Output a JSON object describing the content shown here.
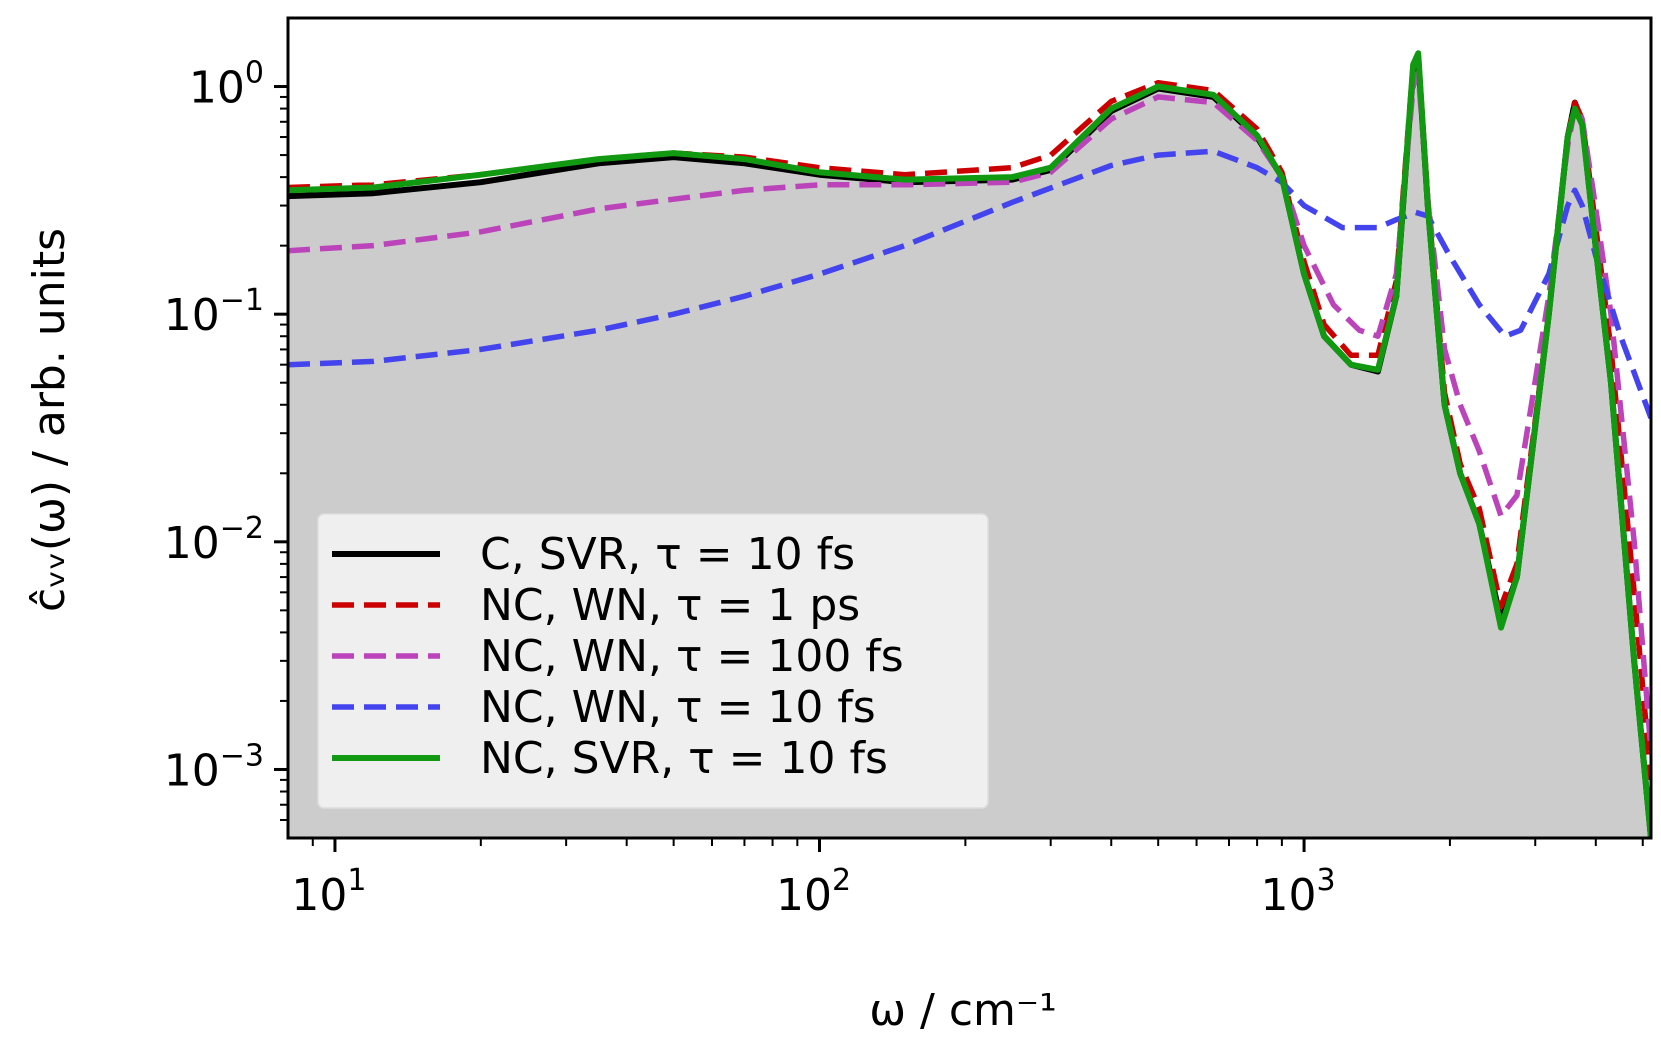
{
  "chart_data": {
    "type": "line",
    "xscale": "log",
    "yscale": "log",
    "xlim": [
      8,
      5200
    ],
    "ylim": [
      0.0005,
      2.0
    ],
    "xlabel": "ω / cm⁻¹",
    "ylabel": "ĉᵥᵥ(ω) / arb. units",
    "x_ticks": [
      {
        "value": 10,
        "base": "10",
        "exp": "1"
      },
      {
        "value": 100,
        "base": "10",
        "exp": "2"
      },
      {
        "value": 1000,
        "base": "10",
        "exp": "3"
      }
    ],
    "y_ticks": [
      {
        "value": 1,
        "base": "10",
        "exp": "0"
      },
      {
        "value": 0.1,
        "base": "10",
        "exp": "−1"
      },
      {
        "value": 0.01,
        "base": "10",
        "exp": "−2"
      },
      {
        "value": 0.001,
        "base": "10",
        "exp": "−3"
      }
    ],
    "legend_position": "lower-left",
    "filled_reference": {
      "name": "C, SVR, τ = 10 fs",
      "color": "#cccccc"
    },
    "series": [
      {
        "name": "C, SVR, τ = 10 fs",
        "color": "#000000",
        "dash": "solid",
        "points": [
          [
            8,
            0.33
          ],
          [
            12,
            0.34
          ],
          [
            20,
            0.38
          ],
          [
            35,
            0.46
          ],
          [
            50,
            0.49
          ],
          [
            70,
            0.46
          ],
          [
            100,
            0.41
          ],
          [
            150,
            0.38
          ],
          [
            250,
            0.39
          ],
          [
            300,
            0.43
          ],
          [
            400,
            0.78
          ],
          [
            500,
            0.98
          ],
          [
            650,
            0.9
          ],
          [
            800,
            0.6
          ],
          [
            900,
            0.4
          ],
          [
            1000,
            0.15
          ],
          [
            1100,
            0.08
          ],
          [
            1250,
            0.06
          ],
          [
            1420,
            0.056
          ],
          [
            1550,
            0.12
          ],
          [
            1680,
            1.2
          ],
          [
            1720,
            1.35
          ],
          [
            1800,
            0.3
          ],
          [
            1950,
            0.04
          ],
          [
            2100,
            0.02
          ],
          [
            2300,
            0.012
          ],
          [
            2550,
            0.0045
          ],
          [
            2750,
            0.007
          ],
          [
            3200,
            0.1
          ],
          [
            3500,
            0.6
          ],
          [
            3620,
            0.85
          ],
          [
            3750,
            0.7
          ],
          [
            3950,
            0.25
          ],
          [
            4300,
            0.05
          ],
          [
            4800,
            0.003
          ],
          [
            5200,
            0.0005
          ]
        ]
      },
      {
        "name": "NC, WN, τ = 1 ps",
        "color": "#cc0000",
        "dash": "dashed",
        "points": [
          [
            8,
            0.36
          ],
          [
            12,
            0.37
          ],
          [
            20,
            0.41
          ],
          [
            35,
            0.48
          ],
          [
            50,
            0.51
          ],
          [
            70,
            0.49
          ],
          [
            100,
            0.44
          ],
          [
            150,
            0.41
          ],
          [
            250,
            0.44
          ],
          [
            300,
            0.5
          ],
          [
            400,
            0.86
          ],
          [
            500,
            1.04
          ],
          [
            650,
            0.96
          ],
          [
            800,
            0.65
          ],
          [
            900,
            0.42
          ],
          [
            1000,
            0.17
          ],
          [
            1100,
            0.09
          ],
          [
            1250,
            0.066
          ],
          [
            1420,
            0.066
          ],
          [
            1550,
            0.14
          ],
          [
            1680,
            1.25
          ],
          [
            1720,
            1.35
          ],
          [
            1800,
            0.32
          ],
          [
            1950,
            0.045
          ],
          [
            2100,
            0.022
          ],
          [
            2300,
            0.014
          ],
          [
            2550,
            0.0052
          ],
          [
            2750,
            0.008
          ],
          [
            3200,
            0.1
          ],
          [
            3500,
            0.6
          ],
          [
            3620,
            0.85
          ],
          [
            3750,
            0.72
          ],
          [
            3950,
            0.3
          ],
          [
            4300,
            0.07
          ],
          [
            4800,
            0.006
          ],
          [
            5200,
            0.0009
          ]
        ]
      },
      {
        "name": "NC, WN, τ = 100 fs",
        "color": "#bb44bb",
        "dash": "dashed",
        "points": [
          [
            8,
            0.19
          ],
          [
            12,
            0.2
          ],
          [
            20,
            0.23
          ],
          [
            35,
            0.29
          ],
          [
            50,
            0.32
          ],
          [
            70,
            0.35
          ],
          [
            100,
            0.37
          ],
          [
            150,
            0.37
          ],
          [
            250,
            0.38
          ],
          [
            300,
            0.42
          ],
          [
            400,
            0.72
          ],
          [
            500,
            0.9
          ],
          [
            650,
            0.85
          ],
          [
            800,
            0.58
          ],
          [
            900,
            0.4
          ],
          [
            1000,
            0.2
          ],
          [
            1150,
            0.11
          ],
          [
            1300,
            0.085
          ],
          [
            1420,
            0.08
          ],
          [
            1550,
            0.15
          ],
          [
            1680,
            1.0
          ],
          [
            1720,
            1.15
          ],
          [
            1800,
            0.32
          ],
          [
            1950,
            0.07
          ],
          [
            2100,
            0.04
          ],
          [
            2300,
            0.025
          ],
          [
            2550,
            0.013
          ],
          [
            2750,
            0.016
          ],
          [
            3200,
            0.12
          ],
          [
            3500,
            0.55
          ],
          [
            3620,
            0.8
          ],
          [
            3750,
            0.72
          ],
          [
            3950,
            0.35
          ],
          [
            4300,
            0.1
          ],
          [
            4800,
            0.01
          ],
          [
            5200,
            0.0012
          ]
        ]
      },
      {
        "name": "NC, WN, τ = 10 fs",
        "color": "#4444ee",
        "dash": "dashed",
        "points": [
          [
            8,
            0.06
          ],
          [
            12,
            0.062
          ],
          [
            20,
            0.07
          ],
          [
            35,
            0.085
          ],
          [
            50,
            0.1
          ],
          [
            70,
            0.12
          ],
          [
            100,
            0.15
          ],
          [
            150,
            0.2
          ],
          [
            250,
            0.31
          ],
          [
            400,
            0.45
          ],
          [
            500,
            0.5
          ],
          [
            650,
            0.52
          ],
          [
            800,
            0.44
          ],
          [
            900,
            0.38
          ],
          [
            1000,
            0.3
          ],
          [
            1200,
            0.24
          ],
          [
            1420,
            0.24
          ],
          [
            1550,
            0.26
          ],
          [
            1700,
            0.28
          ],
          [
            1800,
            0.27
          ],
          [
            2000,
            0.18
          ],
          [
            2300,
            0.11
          ],
          [
            2600,
            0.08
          ],
          [
            2800,
            0.085
          ],
          [
            3200,
            0.15
          ],
          [
            3500,
            0.3
          ],
          [
            3620,
            0.35
          ],
          [
            3750,
            0.3
          ],
          [
            4000,
            0.18
          ],
          [
            4500,
            0.08
          ],
          [
            5200,
            0.035
          ]
        ]
      },
      {
        "name": "NC, SVR, τ = 10 fs",
        "color": "#119911",
        "dash": "solid",
        "points": [
          [
            8,
            0.35
          ],
          [
            12,
            0.36
          ],
          [
            20,
            0.41
          ],
          [
            35,
            0.48
          ],
          [
            50,
            0.51
          ],
          [
            70,
            0.48
          ],
          [
            100,
            0.42
          ],
          [
            150,
            0.39
          ],
          [
            250,
            0.4
          ],
          [
            300,
            0.44
          ],
          [
            400,
            0.8
          ],
          [
            500,
            1.0
          ],
          [
            650,
            0.92
          ],
          [
            800,
            0.61
          ],
          [
            900,
            0.4
          ],
          [
            1000,
            0.15
          ],
          [
            1100,
            0.08
          ],
          [
            1250,
            0.06
          ],
          [
            1420,
            0.057
          ],
          [
            1550,
            0.12
          ],
          [
            1680,
            1.25
          ],
          [
            1720,
            1.4
          ],
          [
            1800,
            0.3
          ],
          [
            1950,
            0.04
          ],
          [
            2100,
            0.02
          ],
          [
            2300,
            0.012
          ],
          [
            2550,
            0.0042
          ],
          [
            2750,
            0.007
          ],
          [
            3200,
            0.1
          ],
          [
            3500,
            0.6
          ],
          [
            3620,
            0.8
          ],
          [
            3750,
            0.68
          ],
          [
            3950,
            0.25
          ],
          [
            4300,
            0.05
          ],
          [
            4800,
            0.003
          ],
          [
            5200,
            0.0005
          ]
        ]
      }
    ]
  }
}
